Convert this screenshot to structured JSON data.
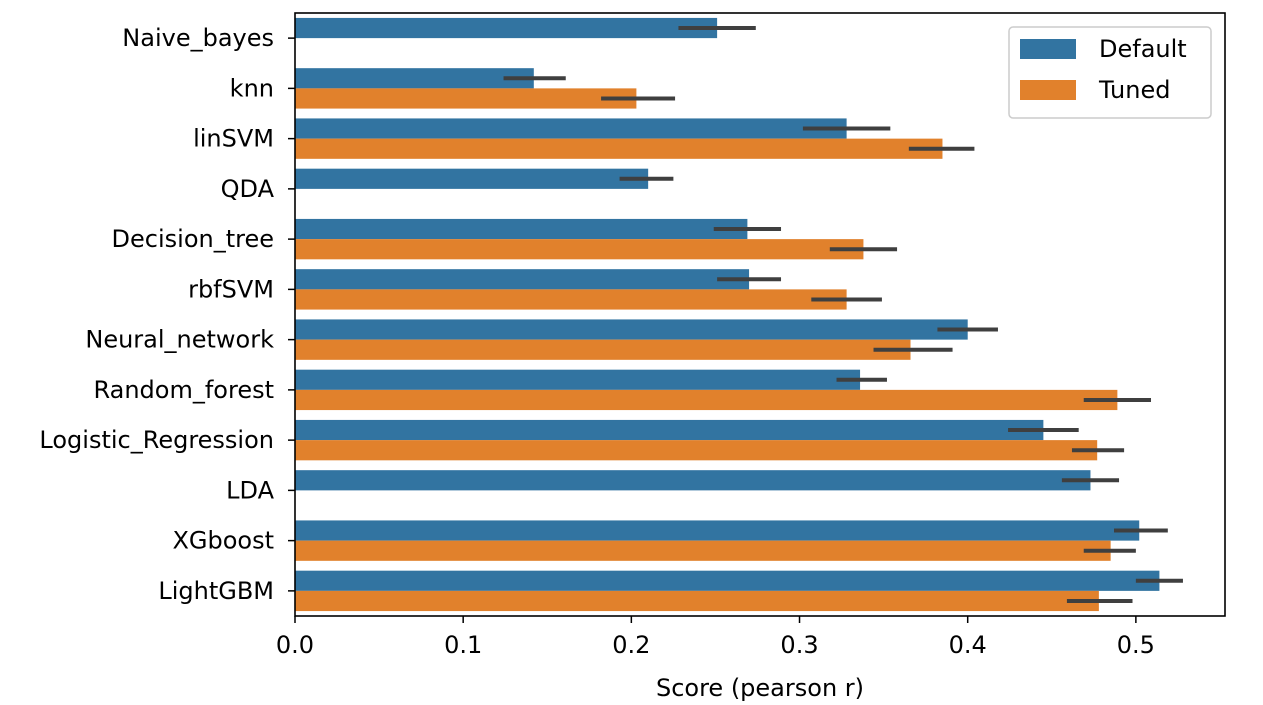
{
  "chart_data": {
    "type": "bar",
    "orientation": "horizontal",
    "xlabel": "Score (pearson r)",
    "ylabel": "",
    "xlim": [
      0.0,
      0.553
    ],
    "xticks": [
      "0.0",
      "0.1",
      "0.2",
      "0.3",
      "0.4",
      "0.5"
    ],
    "grid": false,
    "legend_position": "top-right",
    "categories": [
      "Naive_bayes",
      "knn",
      "linSVM",
      "QDA",
      "Decision_tree",
      "rbfSVM",
      "Neural_network",
      "Random_forest",
      "Logistic_Regression",
      "LDA",
      "XGboost",
      "LightGBM"
    ],
    "series": [
      {
        "name": "Default",
        "color": "#3274a1",
        "values": [
          0.251,
          0.142,
          0.328,
          0.21,
          0.269,
          0.27,
          0.4,
          0.336,
          0.445,
          0.473,
          0.502,
          0.514
        ],
        "error_low": [
          0.228,
          0.124,
          0.302,
          0.193,
          0.249,
          0.251,
          0.382,
          0.322,
          0.424,
          0.456,
          0.487,
          0.5
        ],
        "error_high": [
          0.274,
          0.161,
          0.354,
          0.225,
          0.289,
          0.289,
          0.418,
          0.352,
          0.466,
          0.49,
          0.519,
          0.528
        ]
      },
      {
        "name": "Tuned",
        "color": "#e1812c",
        "values": [
          null,
          0.203,
          0.385,
          null,
          0.338,
          0.328,
          0.366,
          0.489,
          0.477,
          null,
          0.485,
          0.478
        ],
        "error_low": [
          null,
          0.182,
          0.365,
          null,
          0.318,
          0.307,
          0.344,
          0.469,
          0.462,
          null,
          0.469,
          0.459
        ],
        "error_high": [
          null,
          0.226,
          0.404,
          null,
          0.358,
          0.349,
          0.391,
          0.509,
          0.493,
          null,
          0.5,
          0.498
        ]
      }
    ]
  }
}
